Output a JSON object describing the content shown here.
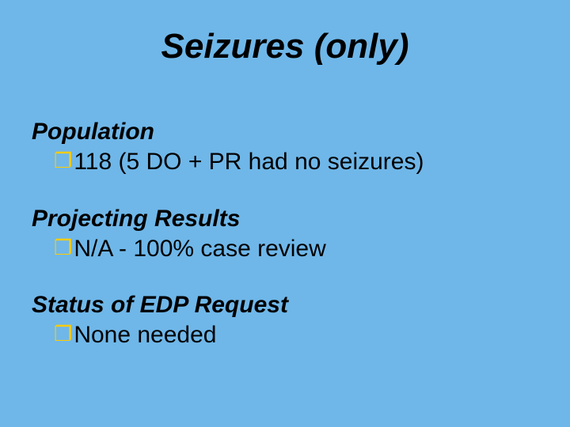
{
  "slide": {
    "background_color": "#6fb7e9",
    "text_color": "#000000",
    "bullet_color": "#ffcc00",
    "title_fontsize": 44,
    "heading_fontsize": 30,
    "body_fontsize": 30,
    "font_family": "Verdana",
    "title": "Seizures (only)",
    "sections": [
      {
        "heading": "Population",
        "items": [
          "118 (5 DO + PR had no seizures)"
        ]
      },
      {
        "heading": "Projecting Results",
        "items": [
          "N/A - 100% case review"
        ]
      },
      {
        "heading": "Status of EDP Request",
        "items": [
          "None needed"
        ]
      }
    ],
    "bullet_glyph": "❐"
  }
}
